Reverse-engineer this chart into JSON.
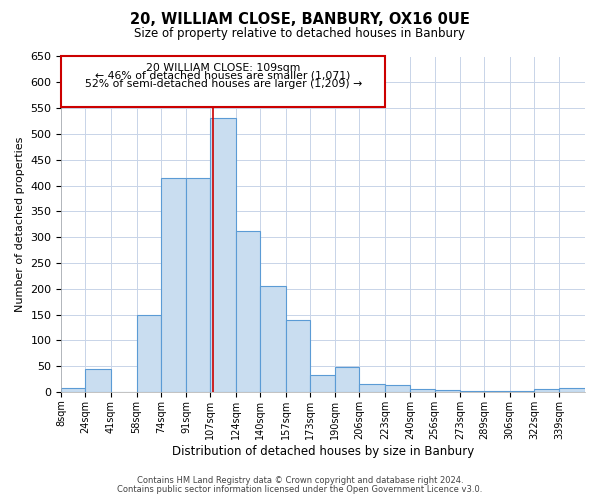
{
  "title": "20, WILLIAM CLOSE, BANBURY, OX16 0UE",
  "subtitle": "Size of property relative to detached houses in Banbury",
  "xlabel": "Distribution of detached houses by size in Banbury",
  "ylabel": "Number of detached properties",
  "bar_labels": [
    "8sqm",
    "24sqm",
    "41sqm",
    "58sqm",
    "74sqm",
    "91sqm",
    "107sqm",
    "124sqm",
    "140sqm",
    "157sqm",
    "173sqm",
    "190sqm",
    "206sqm",
    "223sqm",
    "240sqm",
    "256sqm",
    "273sqm",
    "289sqm",
    "306sqm",
    "322sqm",
    "339sqm"
  ],
  "bar_values": [
    8,
    44,
    0,
    150,
    415,
    415,
    530,
    312,
    205,
    140,
    33,
    48,
    15,
    14,
    5,
    3,
    2,
    2,
    2,
    5,
    8
  ],
  "bar_edges": [
    8,
    24,
    41,
    58,
    74,
    91,
    107,
    124,
    140,
    157,
    173,
    190,
    206,
    223,
    240,
    256,
    273,
    289,
    306,
    322,
    339,
    356
  ],
  "property_line_x": 109,
  "annotation_line0": "20 WILLIAM CLOSE: 109sqm",
  "annotation_line1": "← 46% of detached houses are smaller (1,071)",
  "annotation_line2": "52% of semi-detached houses are larger (1,209) →",
  "bar_color": "#c9ddf0",
  "bar_edge_color": "#5b9bd5",
  "line_color": "#cc0000",
  "box_edge_color": "#cc0000",
  "ylim": [
    0,
    650
  ],
  "yticks": [
    0,
    50,
    100,
    150,
    200,
    250,
    300,
    350,
    400,
    450,
    500,
    550,
    600,
    650
  ],
  "footer1": "Contains HM Land Registry data © Crown copyright and database right 2024.",
  "footer2": "Contains public sector information licensed under the Open Government Licence v3.0.",
  "background_color": "#ffffff",
  "grid_color": "#c8d4e8"
}
